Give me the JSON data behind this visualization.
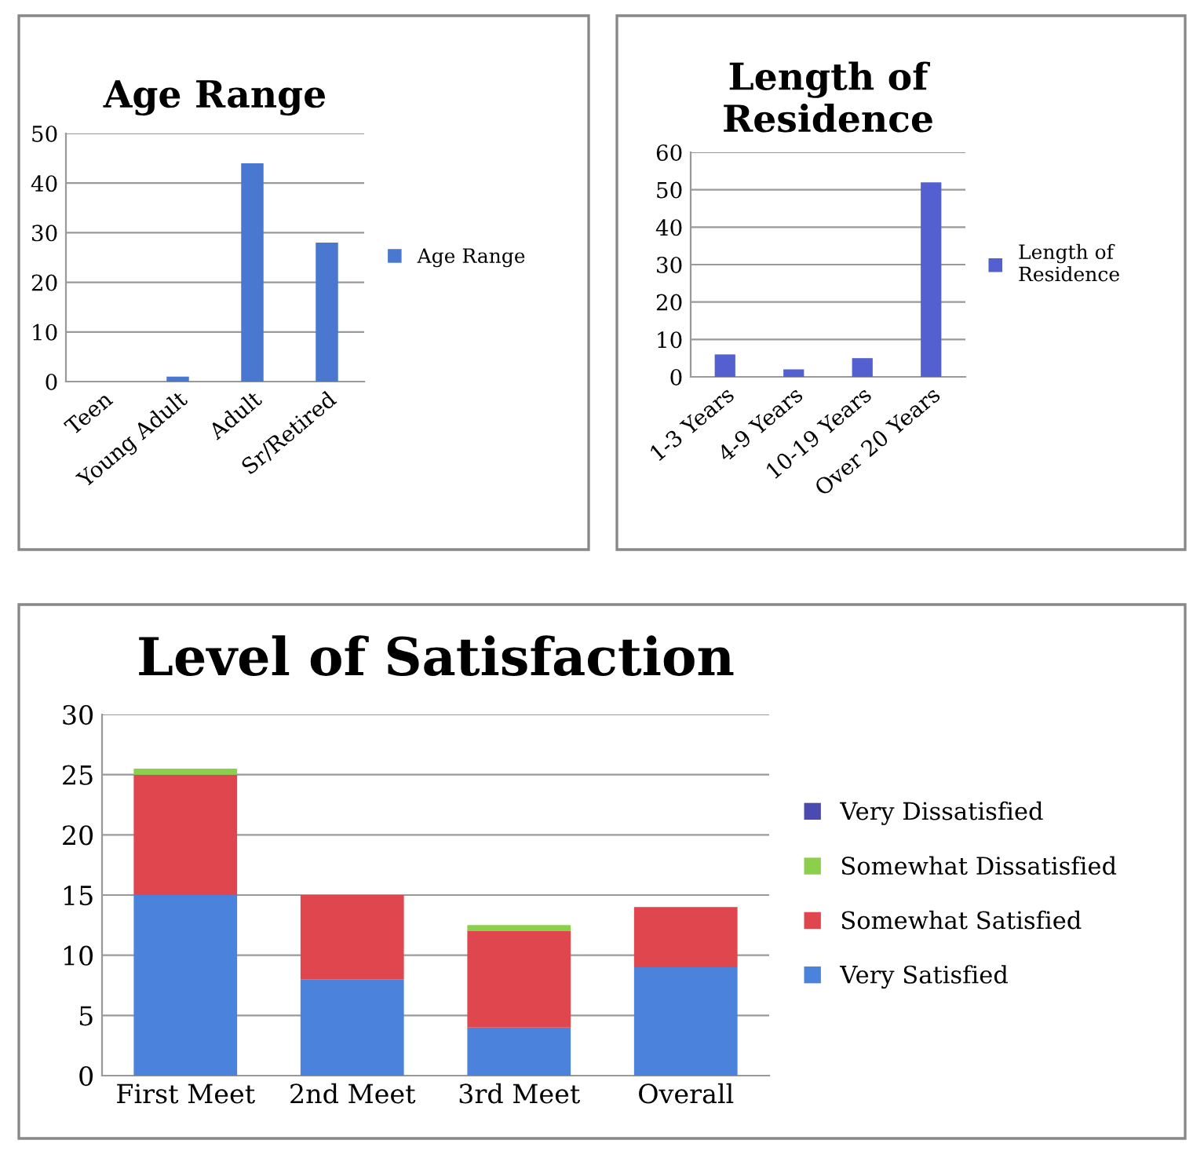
{
  "chart_data": [
    {
      "type": "bar",
      "title": "Age Range",
      "categories": [
        "Teen",
        "Young Adult",
        "Adult",
        "Sr/Retired"
      ],
      "series": [
        {
          "name": "Age Range",
          "color": "#4a78d0",
          "values": [
            0,
            1,
            44,
            28
          ]
        }
      ],
      "ylim": [
        0,
        50
      ],
      "yticks": [
        0,
        10,
        20,
        30,
        40,
        50
      ],
      "grid": "y",
      "legend": "right"
    },
    {
      "type": "bar",
      "title": "Length of Residence",
      "categories": [
        "1-3 Years",
        "4-9 Years",
        "10-19 Years",
        "Over 20 Years"
      ],
      "series": [
        {
          "name": "Length of Residence",
          "color": "#5560d0",
          "values": [
            6,
            2,
            5,
            52
          ]
        }
      ],
      "ylim": [
        0,
        60
      ],
      "yticks": [
        0,
        10,
        20,
        30,
        40,
        50,
        60
      ],
      "grid": "y",
      "legend": "right"
    },
    {
      "type": "bar",
      "title": "Level of Satisfaction",
      "categories": [
        "First Meet",
        "2nd Meet",
        "3rd Meet",
        "Overall"
      ],
      "stacked": true,
      "series": [
        {
          "name": "Very Satisfied",
          "color": "#4a82dc",
          "values": [
            15,
            8,
            4,
            9
          ]
        },
        {
          "name": "Somewhat Satisfied",
          "color": "#e0464e",
          "values": [
            10,
            7,
            8,
            5
          ]
        },
        {
          "name": "Somewhat Dissatisfied",
          "color": "#8ccf4a",
          "values": [
            0.5,
            0,
            0.5,
            0
          ]
        },
        {
          "name": "Very Dissatisfied",
          "color": "#4a4ab0",
          "values": [
            0,
            0,
            0,
            0
          ]
        }
      ],
      "ylim": [
        0,
        30
      ],
      "yticks": [
        0,
        5,
        10,
        15,
        20,
        25,
        30
      ],
      "grid": "y",
      "legend": "right"
    }
  ]
}
